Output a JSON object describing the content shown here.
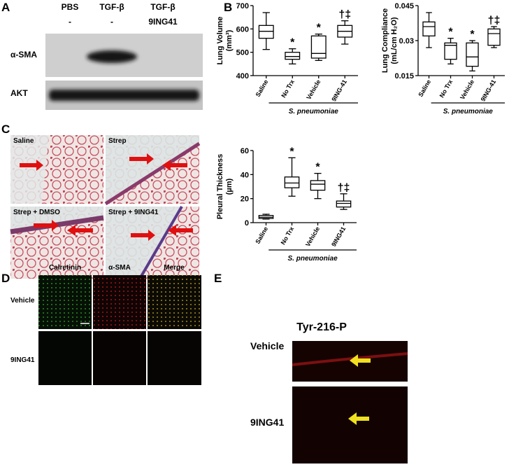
{
  "panels": {
    "a": "A",
    "b": "B",
    "c": "C",
    "d": "D",
    "e": "E"
  },
  "blot": {
    "columns": [
      "PBS",
      "TGF-β",
      "TGF-β"
    ],
    "treatments": [
      "-",
      "-",
      "9ING41"
    ],
    "rows": [
      "α-SMA",
      "AKT"
    ]
  },
  "histology": {
    "labels": [
      "Saline",
      "Strep",
      "Strep + DMSO",
      "Strep + 9ING41"
    ]
  },
  "immunofluorescence": {
    "columns": [
      "Calretinin",
      "α-SMA",
      "Merge"
    ],
    "rows": [
      "Vehicle",
      "9ING41"
    ]
  },
  "phospho": {
    "title": "Tyr-216-P",
    "rows": [
      "Vehicle",
      "9ING41"
    ]
  },
  "chart_data": [
    {
      "type": "box",
      "y_label": [
        "Lung Volume",
        "(mm³)"
      ],
      "x_label": "S. pneumoniae",
      "categories": [
        "Saline",
        "No Trx",
        "Vehicle",
        "9ING-41"
      ],
      "values": [
        [
          512,
          560,
          590,
          615,
          670
        ],
        [
          450,
          470,
          482,
          500,
          515
        ],
        [
          465,
          475,
          495,
          570,
          578
        ],
        [
          535,
          565,
          590,
          615,
          635
        ]
      ],
      "annotations": [
        null,
        "*",
        "*",
        "†‡"
      ],
      "ylim": [
        400,
        700
      ],
      "yticks": [
        400,
        500,
        600,
        700
      ]
    },
    {
      "type": "box",
      "y_label": [
        "Lung Compliance",
        "(mL/cm H₂O)"
      ],
      "x_label": "S. pneumoniae",
      "categories": [
        "Saline",
        "No Trx",
        "Vehicle",
        "9ING-41"
      ],
      "values": [
        [
          0.027,
          0.032,
          0.036,
          0.038,
          0.042
        ],
        [
          0.02,
          0.022,
          0.028,
          0.029,
          0.031
        ],
        [
          0.017,
          0.019,
          0.023,
          0.029,
          0.03
        ],
        [
          0.027,
          0.028,
          0.033,
          0.035,
          0.036
        ]
      ],
      "annotations": [
        null,
        "*",
        "*",
        "†‡"
      ],
      "ylim": [
        0.015,
        0.045
      ],
      "yticks": [
        0.015,
        0.03,
        0.045
      ]
    },
    {
      "type": "box",
      "y_label": [
        "Pleural Thickness",
        "(µm)"
      ],
      "x_label": "S. pneumoniae",
      "categories": [
        "Saline",
        "No Trx",
        "Vehicle",
        "9ING41"
      ],
      "values": [
        [
          3,
          3.5,
          4.5,
          6,
          7
        ],
        [
          22,
          29,
          33,
          38,
          54
        ],
        [
          20,
          27,
          32,
          35,
          41
        ],
        [
          11,
          13,
          16,
          18,
          24
        ]
      ],
      "annotations": [
        null,
        "*",
        "*",
        "†‡"
      ],
      "ylim": [
        0,
        60
      ],
      "yticks": [
        0,
        20,
        40,
        60
      ]
    }
  ]
}
